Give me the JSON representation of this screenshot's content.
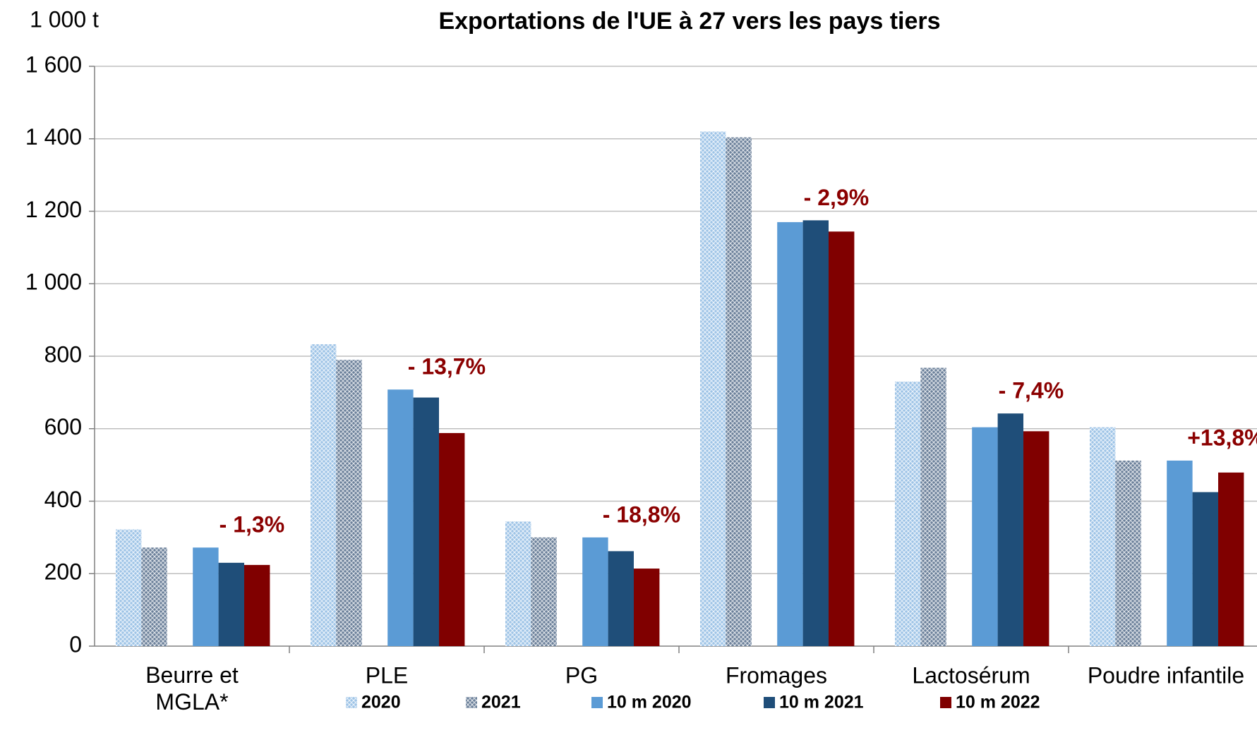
{
  "chart_data": {
    "type": "bar",
    "title": "Exportations de l'UE à 27 vers les pays tiers",
    "y_label": "1 000 t",
    "categories": [
      "Beurre et\nMGLA*",
      "PLE",
      "PG",
      "Fromages",
      "Lactosérum",
      "Poudre infantile"
    ],
    "series": [
      {
        "name": "2020",
        "color": "#9dc3e6",
        "hatch": true,
        "values": [
          322,
          833,
          344,
          1420,
          730,
          604
        ]
      },
      {
        "name": "2021",
        "color": "#6a7f99",
        "hatch": true,
        "values": [
          272,
          790,
          300,
          1404,
          768,
          512
        ]
      },
      {
        "name": "10 m 2020",
        "color": "#5b9bd5",
        "hatch": false,
        "values": [
          272,
          708,
          300,
          1170,
          604,
          512
        ]
      },
      {
        "name": "10 m 2021",
        "color": "#1f4e79",
        "hatch": false,
        "values": [
          230,
          686,
          262,
          1175,
          642,
          425
        ]
      },
      {
        "name": "10 m 2022",
        "color": "#800000",
        "hatch": false,
        "values": [
          224,
          588,
          214,
          1144,
          593,
          479
        ]
      }
    ],
    "annotations": [
      "- 1,3%",
      "- 13,7%",
      "- 18,8%",
      "- 2,9%",
      "- 7,4%",
      "+13,8%"
    ],
    "ylim": [
      0,
      1600
    ],
    "yticks": [
      0,
      200,
      400,
      600,
      800,
      {
        "value": 1000,
        "label": "1 000"
      },
      {
        "value": 1200,
        "label": "1 200"
      },
      {
        "value": 1400,
        "label": "1 400"
      },
      {
        "value": 1600,
        "label": "1 600"
      }
    ],
    "grid": true
  }
}
